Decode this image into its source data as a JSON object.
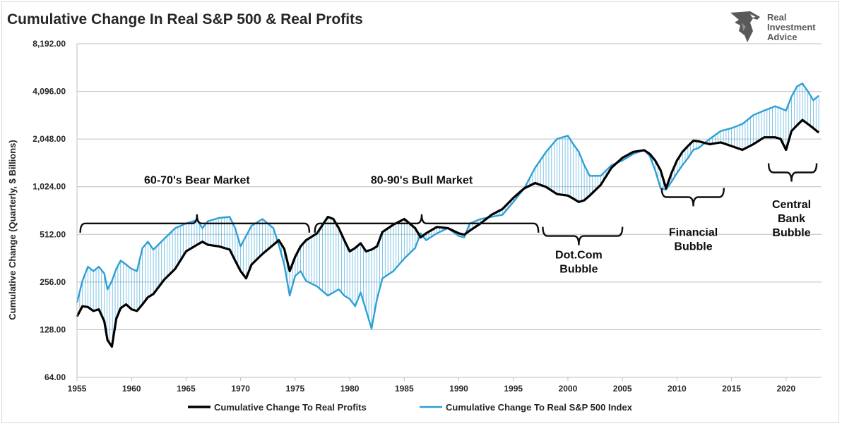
{
  "chart_data": {
    "type": "line",
    "title": "Cumulative Change In Real S&P 500 & Real Profits",
    "ylabel": "Cumulative Change (Quarterly, $ Billions)",
    "xlabel": "",
    "yscale": "log2",
    "ylim": [
      64,
      8192
    ],
    "xlim": [
      1955,
      2023.25
    ],
    "yticks": [
      "64.00",
      "128.00",
      "256.00",
      "512.00",
      "1,024.00",
      "2,048.00",
      "4,096.00",
      "8,192.00"
    ],
    "ytick_values": [
      64,
      128,
      256,
      512,
      1024,
      2048,
      4096,
      8192
    ],
    "xticks": [
      "1955",
      "1960",
      "1965",
      "1970",
      "1975",
      "1980",
      "1985",
      "1990",
      "1995",
      "2000",
      "2005",
      "2010",
      "2015",
      "2020"
    ],
    "xtick_values": [
      1955,
      1960,
      1965,
      1970,
      1975,
      1980,
      1985,
      1990,
      1995,
      2000,
      2005,
      2010,
      2015,
      2020
    ],
    "grid": "horizontal",
    "legend_position": "bottom",
    "shading": "vertical hatching between the two series",
    "series": [
      {
        "name": "Cumulative Change To Real Profits",
        "color": "#000000",
        "x": [
          1955,
          1955.5,
          1956,
          1956.5,
          1957,
          1957.5,
          1957.8,
          1958.2,
          1958.6,
          1959,
          1959.5,
          1960,
          1960.5,
          1961,
          1961.5,
          1962,
          1963,
          1964,
          1965,
          1966,
          1966.5,
          1967,
          1968,
          1969,
          1969.5,
          1970,
          1970.5,
          1971,
          1972,
          1973,
          1973.5,
          1974,
          1974.5,
          1975,
          1975.5,
          1976,
          1977,
          1978,
          1978.5,
          1979,
          1979.5,
          1980,
          1980.5,
          1981,
          1981.5,
          1982,
          1982.5,
          1983,
          1984,
          1985,
          1986,
          1986.5,
          1987,
          1988,
          1989,
          1990,
          1990.5,
          1991,
          1992,
          1993,
          1994,
          1995,
          1996,
          1997,
          1998,
          1999,
          2000,
          2000.5,
          2001,
          2001.5,
          2002,
          2003,
          2004,
          2005,
          2006,
          2007,
          2007.5,
          2008,
          2008.5,
          2009,
          2009.5,
          2010,
          2010.5,
          2011,
          2011.5,
          2012,
          2013,
          2014,
          2015,
          2016,
          2017,
          2018,
          2019,
          2019.5,
          2020,
          2020.5,
          2021,
          2021.5,
          2022,
          2022.5,
          2023
        ],
        "y": [
          155,
          180,
          178,
          168,
          172,
          145,
          110,
          100,
          150,
          175,
          185,
          172,
          168,
          185,
          205,
          215,
          265,
          310,
          400,
          440,
          460,
          440,
          430,
          410,
          350,
          300,
          270,
          330,
          385,
          440,
          470,
          415,
          300,
          370,
          430,
          470,
          520,
          660,
          640,
          560,
          470,
          400,
          420,
          450,
          400,
          410,
          430,
          530,
          590,
          640,
          560,
          490,
          520,
          570,
          560,
          520,
          510,
          540,
          600,
          680,
          740,
          870,
          1000,
          1080,
          1020,
          920,
          900,
          860,
          820,
          840,
          900,
          1050,
          1350,
          1560,
          1700,
          1740,
          1650,
          1500,
          1300,
          1000,
          1250,
          1500,
          1700,
          1850,
          2000,
          1980,
          1900,
          1950,
          1850,
          1750,
          1900,
          2100,
          2100,
          2050,
          1750,
          2300,
          2500,
          2700,
          2550,
          2400,
          2250
        ]
      },
      {
        "name": "Cumulative Change To Real S&P 500 Index",
        "color": "#2e9fd6",
        "x": [
          1955,
          1955.5,
          1956,
          1956.5,
          1957,
          1957.5,
          1957.8,
          1958.2,
          1958.6,
          1959,
          1959.5,
          1960,
          1960.5,
          1961,
          1961.5,
          1962,
          1963,
          1964,
          1965,
          1966,
          1966.5,
          1967,
          1968,
          1969,
          1969.5,
          1970,
          1970.5,
          1971,
          1972,
          1973,
          1973.5,
          1974,
          1974.5,
          1975,
          1975.5,
          1976,
          1977,
          1978,
          1978.5,
          1979,
          1979.5,
          1980,
          1980.5,
          1981,
          1981.5,
          1982,
          1982.5,
          1983,
          1984,
          1985,
          1986,
          1986.5,
          1987,
          1988,
          1989,
          1990,
          1990.5,
          1991,
          1992,
          1993,
          1994,
          1995,
          1996,
          1997,
          1998,
          1999,
          2000,
          2000.5,
          2001,
          2001.5,
          2002,
          2003,
          2004,
          2005,
          2006,
          2007,
          2007.5,
          2008,
          2008.5,
          2009,
          2009.5,
          2010,
          2010.5,
          2011,
          2011.5,
          2012,
          2013,
          2014,
          2015,
          2016,
          2017,
          2018,
          2019,
          2019.5,
          2020,
          2020.5,
          2021,
          2021.5,
          2022,
          2022.5,
          2023
        ],
        "y": [
          190,
          260,
          320,
          300,
          320,
          290,
          230,
          260,
          310,
          350,
          330,
          310,
          300,
          420,
          460,
          410,
          480,
          560,
          600,
          630,
          560,
          620,
          650,
          660,
          560,
          430,
          500,
          580,
          640,
          560,
          440,
          330,
          210,
          280,
          300,
          260,
          240,
          210,
          220,
          230,
          210,
          200,
          180,
          220,
          170,
          130,
          200,
          270,
          300,
          360,
          420,
          520,
          470,
          520,
          560,
          500,
          490,
          600,
          640,
          660,
          680,
          820,
          1000,
          1350,
          1700,
          2050,
          2150,
          1900,
          1700,
          1400,
          1200,
          1200,
          1400,
          1500,
          1650,
          1750,
          1600,
          1300,
          1000,
          980,
          1100,
          1250,
          1400,
          1550,
          1750,
          1800,
          2050,
          2300,
          2400,
          2550,
          2900,
          3100,
          3300,
          3200,
          3100,
          3800,
          4400,
          4600,
          4100,
          3600,
          3850
        ]
      }
    ],
    "annotations": [
      {
        "text": "60-70's Bear Market",
        "x0": 1955.3,
        "x1": 1976.3,
        "tip_x": 1966,
        "y": 600,
        "dir": "up",
        "text_y": 1024
      },
      {
        "text": "80-90's Bull Market",
        "x0": 1976.8,
        "x1": 1997.3,
        "tip_x": 1986.6,
        "y": 600,
        "dir": "up",
        "text_y": 1024
      },
      {
        "text": "Dot.Com",
        "text2": "Bubble",
        "x0": 1997.7,
        "x1": 2005,
        "tip_x": 2001,
        "y": 500,
        "dir": "down",
        "text_y": 360
      },
      {
        "text": "Financial",
        "text2": "Bubble",
        "x0": 2008.6,
        "x1": 2014.3,
        "tip_x": 2011.5,
        "y": 880,
        "dir": "down",
        "text_y": 500
      },
      {
        "text": "Central",
        "text2": "Bank",
        "text3": "Bubble",
        "x0": 2018.4,
        "x1": 2022.8,
        "tip_x": 2020.5,
        "y": 1260,
        "dir": "down",
        "text_y": 750
      }
    ]
  },
  "logo": {
    "line1": "Real",
    "line2": "Investment",
    "line3": "Advice"
  }
}
